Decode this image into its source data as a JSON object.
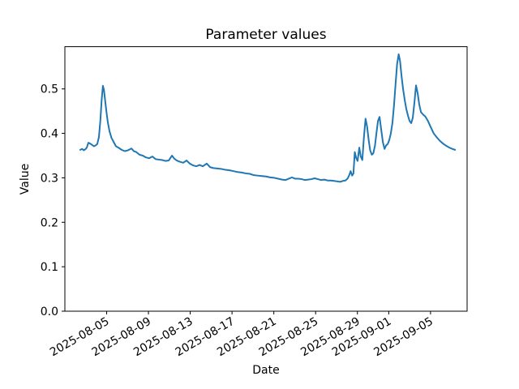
{
  "chart_data": {
    "type": "line",
    "title": "Parameter values",
    "xlabel": "Date",
    "ylabel": "Value",
    "grid": false,
    "legend": "none",
    "colors": {
      "line": "#1f77b4",
      "axis": "#000000",
      "text": "#000000",
      "background": "#ffffff"
    },
    "x_axis": {
      "epoch_label": "2025-08-01",
      "range_days": [
        0,
        38.5
      ],
      "tick_labels": [
        "2025-08-05",
        "2025-08-09",
        "2025-08-13",
        "2025-08-17",
        "2025-08-21",
        "2025-08-25",
        "2025-08-29",
        "2025-09-01",
        "2025-09-05"
      ],
      "tick_day_offsets": [
        4,
        8,
        12,
        16,
        20,
        24,
        28,
        31,
        35
      ],
      "tick_rotation_deg": 30
    },
    "y_axis": {
      "range": [
        0,
        0.595
      ],
      "tick_labels": [
        "0.0",
        "0.1",
        "0.2",
        "0.3",
        "0.4",
        "0.5"
      ],
      "tick_values": [
        0.0,
        0.1,
        0.2,
        0.3,
        0.4,
        0.5
      ]
    },
    "series": [
      {
        "name": "parameter-values",
        "color": "#1f77b4",
        "points": [
          [
            1.47,
            0.363
          ],
          [
            1.65,
            0.365
          ],
          [
            1.8,
            0.362
          ],
          [
            1.95,
            0.364
          ],
          [
            2.1,
            0.368
          ],
          [
            2.25,
            0.379
          ],
          [
            2.42,
            0.377
          ],
          [
            2.6,
            0.374
          ],
          [
            2.78,
            0.371
          ],
          [
            2.95,
            0.373
          ],
          [
            3.1,
            0.376
          ],
          [
            3.26,
            0.392
          ],
          [
            3.4,
            0.43
          ],
          [
            3.52,
            0.475
          ],
          [
            3.64,
            0.507
          ],
          [
            3.74,
            0.498
          ],
          [
            3.84,
            0.477
          ],
          [
            3.96,
            0.452
          ],
          [
            4.11,
            0.425
          ],
          [
            4.27,
            0.405
          ],
          [
            4.46,
            0.39
          ],
          [
            4.66,
            0.381
          ],
          [
            4.89,
            0.371
          ],
          [
            5.12,
            0.368
          ],
          [
            5.43,
            0.363
          ],
          [
            5.74,
            0.36
          ],
          [
            6.05,
            0.362
          ],
          [
            6.37,
            0.366
          ],
          [
            6.6,
            0.36
          ],
          [
            6.83,
            0.358
          ],
          [
            7.14,
            0.352
          ],
          [
            7.45,
            0.35
          ],
          [
            7.76,
            0.346
          ],
          [
            8.07,
            0.344
          ],
          [
            8.38,
            0.348
          ],
          [
            8.69,
            0.342
          ],
          [
            9.0,
            0.341
          ],
          [
            9.32,
            0.34
          ],
          [
            9.63,
            0.338
          ],
          [
            9.94,
            0.339
          ],
          [
            10.25,
            0.35
          ],
          [
            10.48,
            0.343
          ],
          [
            10.71,
            0.339
          ],
          [
            11.02,
            0.336
          ],
          [
            11.33,
            0.334
          ],
          [
            11.64,
            0.339
          ],
          [
            11.96,
            0.332
          ],
          [
            12.27,
            0.328
          ],
          [
            12.58,
            0.326
          ],
          [
            12.89,
            0.329
          ],
          [
            13.2,
            0.326
          ],
          [
            13.58,
            0.332
          ],
          [
            13.9,
            0.324
          ],
          [
            14.21,
            0.322
          ],
          [
            14.59,
            0.321
          ],
          [
            14.98,
            0.32
          ],
          [
            15.37,
            0.318
          ],
          [
            15.76,
            0.317
          ],
          [
            16.15,
            0.315
          ],
          [
            16.53,
            0.313
          ],
          [
            16.92,
            0.312
          ],
          [
            17.31,
            0.31
          ],
          [
            17.7,
            0.309
          ],
          [
            18.09,
            0.306
          ],
          [
            18.47,
            0.305
          ],
          [
            18.86,
            0.304
          ],
          [
            19.25,
            0.303
          ],
          [
            19.64,
            0.301
          ],
          [
            20.03,
            0.3
          ],
          [
            20.42,
            0.298
          ],
          [
            20.8,
            0.296
          ],
          [
            21.11,
            0.295
          ],
          [
            21.42,
            0.298
          ],
          [
            21.73,
            0.301
          ],
          [
            22.05,
            0.298
          ],
          [
            22.36,
            0.298
          ],
          [
            22.67,
            0.297
          ],
          [
            22.98,
            0.295
          ],
          [
            23.29,
            0.296
          ],
          [
            23.6,
            0.297
          ],
          [
            23.91,
            0.299
          ],
          [
            24.22,
            0.297
          ],
          [
            24.53,
            0.295
          ],
          [
            24.84,
            0.296
          ],
          [
            25.15,
            0.294
          ],
          [
            25.46,
            0.294
          ],
          [
            25.77,
            0.293
          ],
          [
            26.08,
            0.292
          ],
          [
            26.35,
            0.291
          ],
          [
            26.6,
            0.293
          ],
          [
            26.85,
            0.294
          ],
          [
            27.05,
            0.298
          ],
          [
            27.2,
            0.305
          ],
          [
            27.35,
            0.315
          ],
          [
            27.5,
            0.305
          ],
          [
            27.62,
            0.31
          ],
          [
            27.75,
            0.358
          ],
          [
            27.88,
            0.345
          ],
          [
            28.02,
            0.338
          ],
          [
            28.18,
            0.368
          ],
          [
            28.32,
            0.348
          ],
          [
            28.47,
            0.34
          ],
          [
            28.62,
            0.39
          ],
          [
            28.78,
            0.433
          ],
          [
            28.93,
            0.415
          ],
          [
            29.08,
            0.385
          ],
          [
            29.22,
            0.362
          ],
          [
            29.38,
            0.352
          ],
          [
            29.52,
            0.355
          ],
          [
            29.68,
            0.372
          ],
          [
            29.82,
            0.4
          ],
          [
            29.97,
            0.428
          ],
          [
            30.12,
            0.437
          ],
          [
            30.28,
            0.408
          ],
          [
            30.44,
            0.38
          ],
          [
            30.6,
            0.365
          ],
          [
            30.75,
            0.373
          ],
          [
            30.9,
            0.376
          ],
          [
            31.05,
            0.385
          ],
          [
            31.2,
            0.4
          ],
          [
            31.35,
            0.423
          ],
          [
            31.5,
            0.462
          ],
          [
            31.65,
            0.51
          ],
          [
            31.8,
            0.556
          ],
          [
            31.95,
            0.578
          ],
          [
            32.08,
            0.563
          ],
          [
            32.22,
            0.53
          ],
          [
            32.37,
            0.5
          ],
          [
            32.53,
            0.475
          ],
          [
            32.68,
            0.455
          ],
          [
            32.84,
            0.44
          ],
          [
            32.99,
            0.428
          ],
          [
            33.15,
            0.423
          ],
          [
            33.3,
            0.435
          ],
          [
            33.46,
            0.47
          ],
          [
            33.61,
            0.508
          ],
          [
            33.77,
            0.49
          ],
          [
            33.92,
            0.465
          ],
          [
            34.08,
            0.448
          ],
          [
            34.3,
            0.442
          ],
          [
            34.5,
            0.438
          ],
          [
            34.75,
            0.428
          ],
          [
            35.0,
            0.415
          ],
          [
            35.3,
            0.4
          ],
          [
            35.6,
            0.391
          ],
          [
            35.9,
            0.383
          ],
          [
            36.2,
            0.377
          ],
          [
            36.5,
            0.372
          ],
          [
            36.8,
            0.368
          ],
          [
            37.1,
            0.365
          ],
          [
            37.35,
            0.363
          ]
        ]
      }
    ]
  }
}
